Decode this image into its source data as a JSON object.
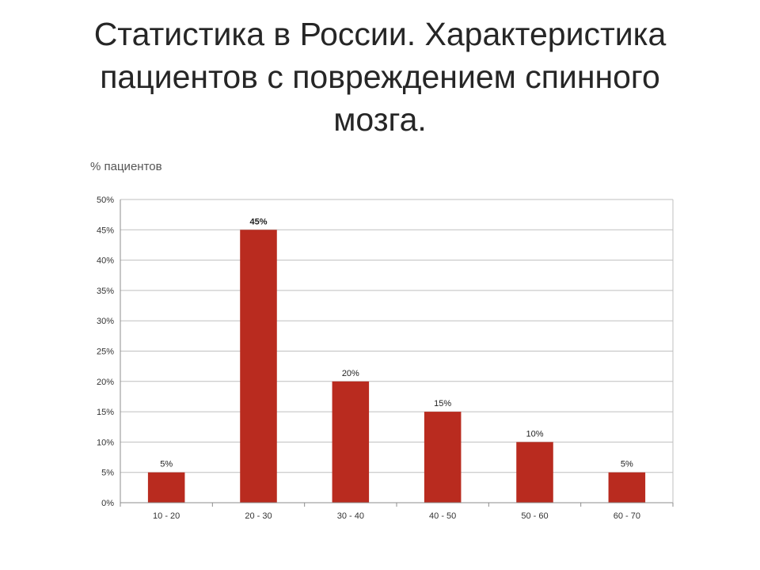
{
  "slide": {
    "title_lines": [
      "Статистика в России. Характеристика",
      "пациентов с повреждением спинного",
      "мозга."
    ]
  },
  "chart_data": {
    "type": "bar",
    "ylabel": "% пациентов",
    "xlabel": "",
    "categories": [
      "10 - 20",
      "20 - 30",
      "30 - 40",
      "40 - 50",
      "50 - 60",
      "60 - 70"
    ],
    "values": [
      5,
      45,
      20,
      15,
      10,
      5
    ],
    "data_labels": [
      "5%",
      "45%",
      "20%",
      "15%",
      "10%",
      "5%"
    ],
    "ylim": [
      0,
      50
    ],
    "yticks": [
      0,
      5,
      10,
      15,
      20,
      25,
      30,
      35,
      40,
      45,
      50
    ],
    "ytick_labels": [
      "0%",
      "5%",
      "10%",
      "15%",
      "20%",
      "25%",
      "30%",
      "35%",
      "40%",
      "45%",
      "50%"
    ],
    "grid": true,
    "legend": "none",
    "colors": {
      "bar": "#b92b1f",
      "grid": "#bfbfbf",
      "axis": "#8c8c8c"
    }
  }
}
